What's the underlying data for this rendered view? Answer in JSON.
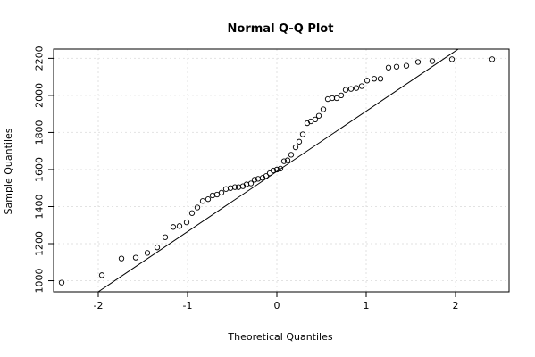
{
  "chart_data": {
    "type": "scatter",
    "title": "Normal Q-Q Plot",
    "xlabel": "Theoretical Quantiles",
    "ylabel": "Sample Quantiles",
    "xlim": [
      -2.5,
      2.6
    ],
    "ylim": [
      940,
      2250
    ],
    "xticks": [
      -2,
      -1,
      0,
      1,
      2
    ],
    "xtick_labels": [
      "-2",
      "-1",
      "0",
      "1",
      "2"
    ],
    "yticks": [
      1000,
      1200,
      1400,
      1600,
      1800,
      2000,
      2200
    ],
    "ytick_labels": [
      "1000",
      "1200",
      "1400",
      "1600",
      "1800",
      "2000",
      "2200"
    ],
    "grid": true,
    "reference_line": {
      "intercept": 1590,
      "slope": 325
    },
    "points": {
      "x": [
        -2.41,
        -1.96,
        -1.74,
        -1.58,
        -1.45,
        -1.34,
        -1.25,
        -1.16,
        -1.09,
        -1.01,
        -0.95,
        -0.89,
        -0.83,
        -0.77,
        -0.72,
        -0.67,
        -0.62,
        -0.57,
        -0.52,
        -0.47,
        -0.43,
        -0.38,
        -0.34,
        -0.29,
        -0.25,
        -0.21,
        -0.16,
        -0.12,
        -0.08,
        -0.04,
        0.0,
        0.04,
        0.08,
        0.12,
        0.16,
        0.21,
        0.25,
        0.29,
        0.34,
        0.38,
        0.43,
        0.47,
        0.52,
        0.57,
        0.62,
        0.67,
        0.72,
        0.77,
        0.83,
        0.89,
        0.95,
        1.01,
        1.09,
        1.16,
        1.25,
        1.34,
        1.45,
        1.58,
        1.74,
        1.96,
        2.41
      ],
      "y": [
        990,
        1030,
        1120,
        1125,
        1150,
        1180,
        1235,
        1290,
        1295,
        1315,
        1365,
        1395,
        1430,
        1440,
        1460,
        1465,
        1475,
        1495,
        1500,
        1505,
        1505,
        1510,
        1520,
        1525,
        1545,
        1550,
        1555,
        1565,
        1580,
        1595,
        1600,
        1605,
        1645,
        1650,
        1680,
        1720,
        1750,
        1790,
        1850,
        1860,
        1870,
        1890,
        1925,
        1980,
        1985,
        1985,
        2000,
        2030,
        2035,
        2040,
        2050,
        2080,
        2090,
        2090,
        2150,
        2155,
        2160,
        2180,
        2185,
        2195,
        2195
      ]
    }
  }
}
